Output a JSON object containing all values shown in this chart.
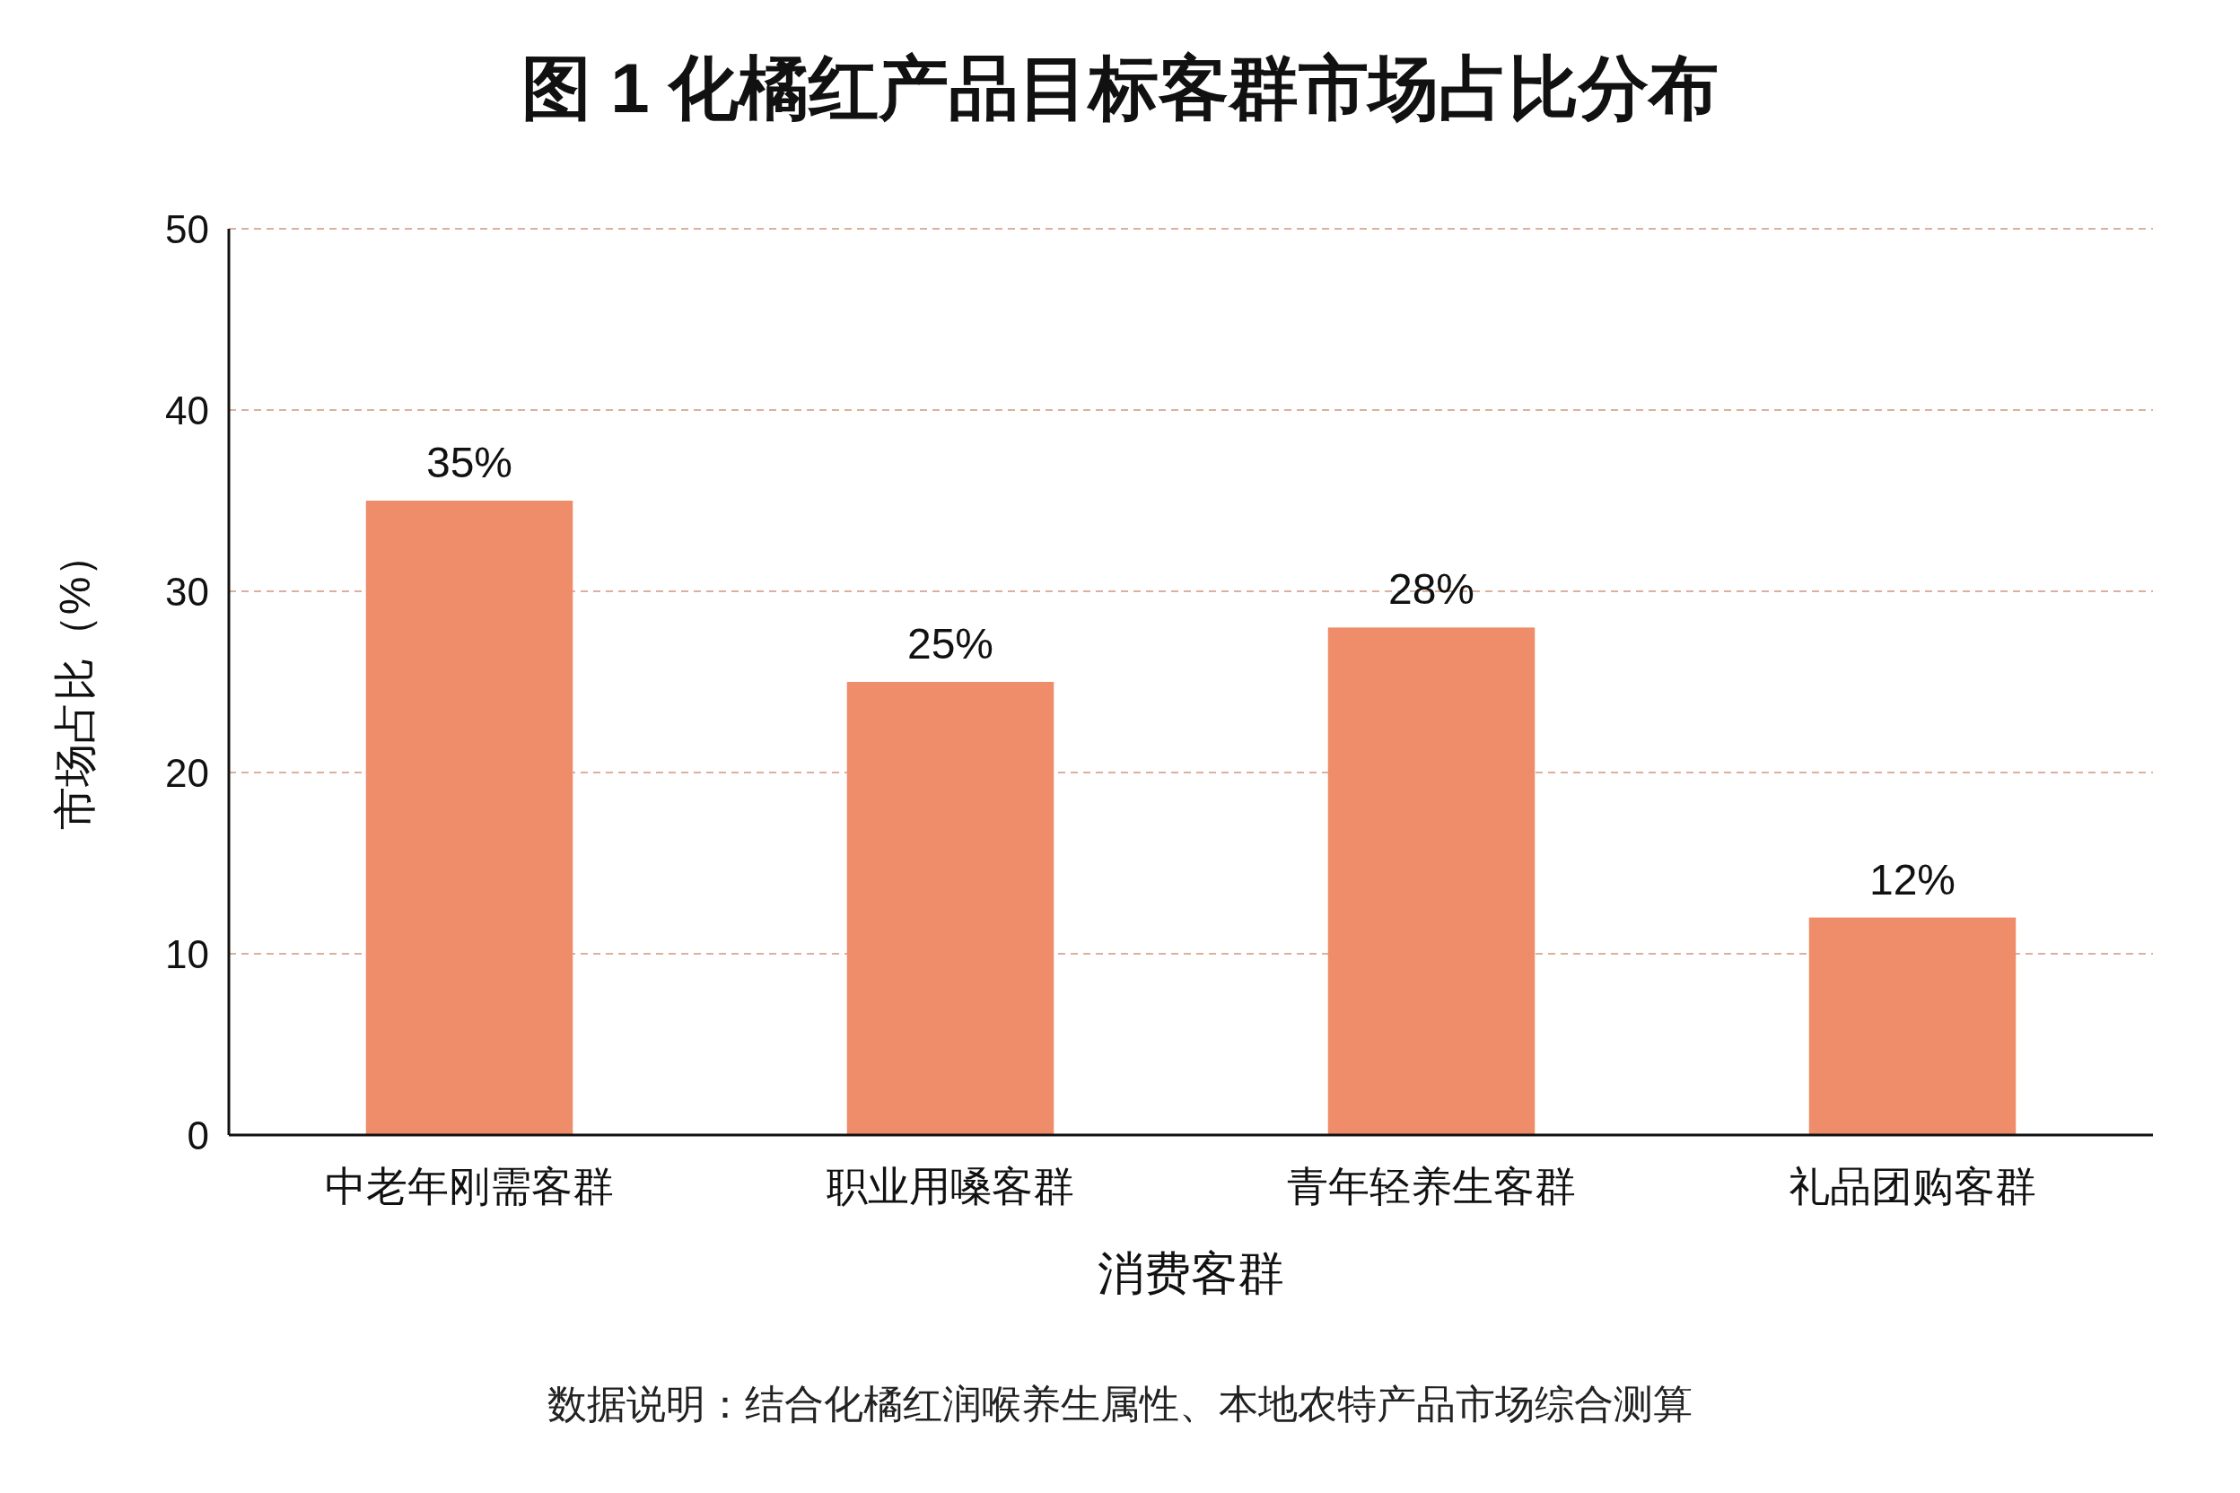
{
  "chart_data": {
    "type": "bar",
    "title": "图 1 化橘红产品目标客群市场占比分布",
    "xlabel": "消费客群",
    "ylabel": "市场占比（%）",
    "categories": [
      "中老年刚需客群",
      "职业用嗓客群",
      "青年轻养生客群",
      "礼品团购客群"
    ],
    "values": [
      35,
      25,
      28,
      12
    ],
    "color": "#ef8c69",
    "value_labels": [
      "35%",
      "25%",
      "28%",
      "12%"
    ],
    "ylim": [
      0,
      50
    ],
    "yticks": [
      0,
      10,
      20,
      30,
      40,
      50
    ],
    "grid": "y",
    "annotations": [
      "数据说明：结合化橘红润喉养生属性、本地农特产品市场综合测算"
    ]
  }
}
